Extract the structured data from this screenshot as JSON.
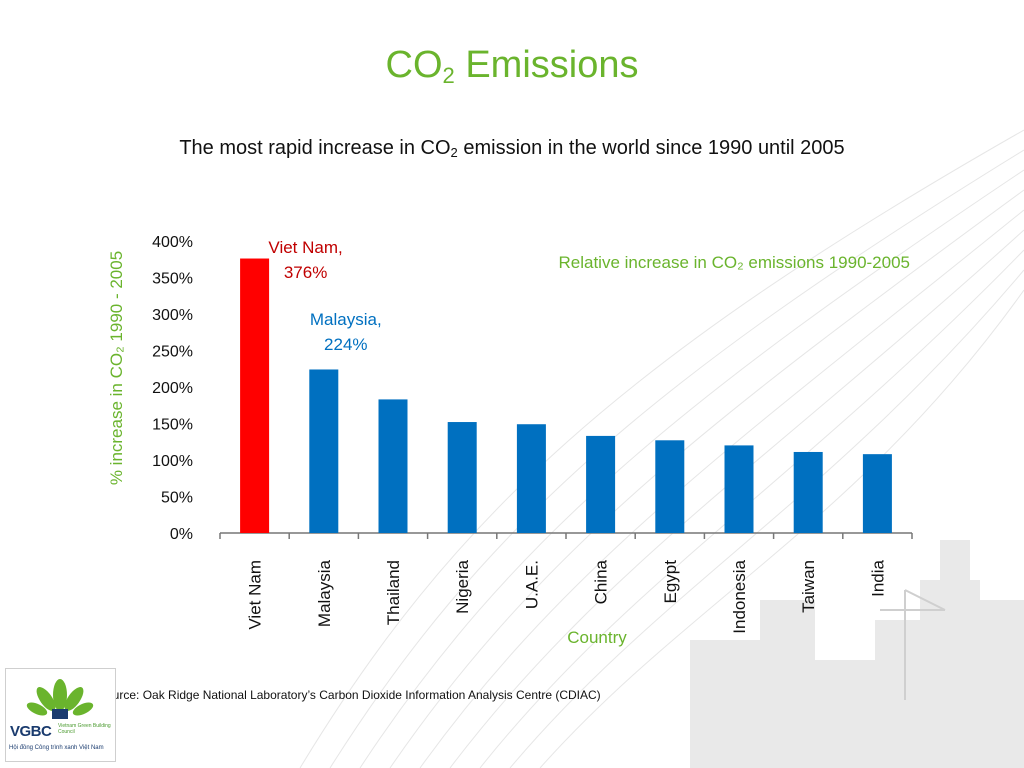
{
  "slide": {
    "title_main": "CO",
    "title_sub": "2",
    "title_rest": " Emissions",
    "subtitle_pre": "The most rapid increase in CO",
    "subtitle_sub": "2",
    "subtitle_post": " emission in the world since 1990 until 2005",
    "source": "Source: Oak Ridge National Laboratory’s Carbon Dioxide Information Analysis Centre (CDIAC)"
  },
  "logo": {
    "acronym": "VGBC",
    "org_en": "Vietnam Green Building Council",
    "org_vi": "Hội đồng Công trình xanh Việt Nam"
  },
  "colors": {
    "accent_green": "#6ab42d",
    "bar_blue": "#0070c0",
    "bar_red": "#ff0000",
    "annot_blue": "#0070c0"
  },
  "chart_data": {
    "type": "bar",
    "title": "Relative increase in CO₂ emissions 1990-2005",
    "xlabel": "Country",
    "ylabel": "% increase in CO₂ 1990 - 2005",
    "ylim": [
      0,
      400
    ],
    "yticks": [
      "0%",
      "50%",
      "100%",
      "150%",
      "200%",
      "250%",
      "300%",
      "350%",
      "400%"
    ],
    "categories": [
      "Viet Nam",
      "Malaysia",
      "Thailand",
      "Nigeria",
      "U.A.E.",
      "China",
      "Egypt",
      "Indonesia",
      "Taiwan",
      "India"
    ],
    "values": [
      376,
      224,
      183,
      152,
      149,
      133,
      127,
      120,
      111,
      108
    ],
    "bar_colors": [
      "#ff0000",
      "#0070c0",
      "#0070c0",
      "#0070c0",
      "#0070c0",
      "#0070c0",
      "#0070c0",
      "#0070c0",
      "#0070c0",
      "#0070c0"
    ],
    "annotations": [
      {
        "category": "Viet Nam",
        "line1": "Viet Nam,",
        "line2": "376%",
        "color": "#c00000"
      },
      {
        "category": "Malaysia",
        "line1": "Malaysia,",
        "line2": "224%",
        "color": "#0070c0"
      }
    ],
    "grid": false,
    "legend": "none"
  }
}
